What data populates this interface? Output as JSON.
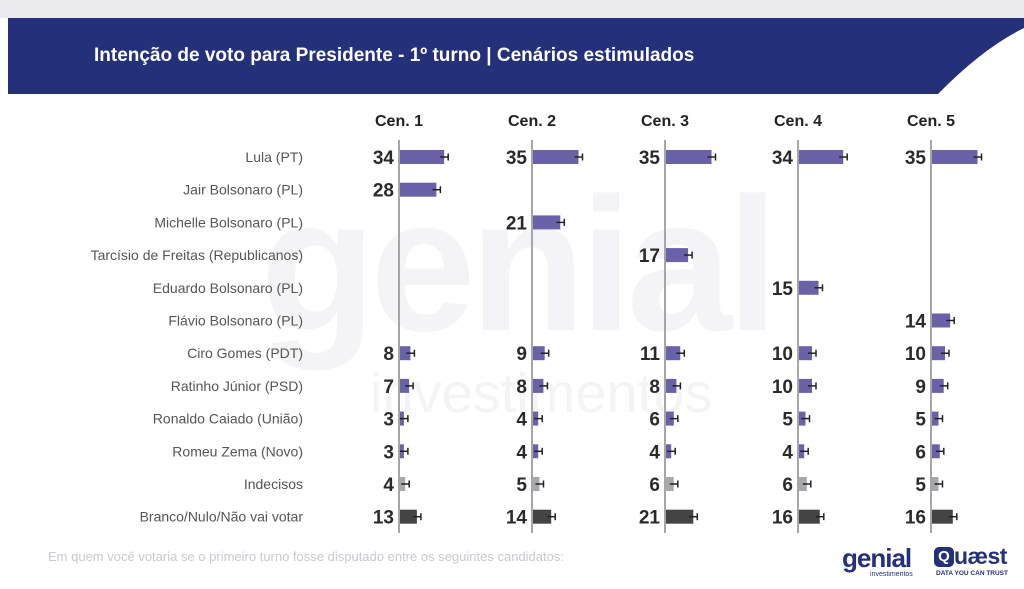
{
  "header": {
    "title": "Intenção de voto para Presidente - 1º turno | Cenários estimulados"
  },
  "footnote": "Em quem você votaria se o primeiro turno fosse disputado entre os seguintes candidatos:",
  "logos": {
    "genial_word": "genial",
    "genial_sub": "investimentos",
    "quaest_word": "uæst",
    "quaest_tagline": "DATA YOU CAN TRUST"
  },
  "colors": {
    "header": "#24307a",
    "candidate_bar": "#6a62a8",
    "undecided_bar": "#a9a9ad",
    "blank_bar": "#444444",
    "axis": "#a6a6a6"
  },
  "chart_data": {
    "type": "bar",
    "orientation": "horizontal",
    "title": "Intenção de voto para Presidente - 1º turno | Cenários estimulados",
    "categories": [
      "Lula (PT)",
      "Jair Bolsonaro (PL)",
      "Michelle Bolsonaro (PL)",
      "Tarcísio de Freitas (Republicanos)",
      "Eduardo Bolsonaro (PL)",
      "Flávio Bolsonaro (PL)",
      "Ciro Gomes (PDT)",
      "Ratinho Júnior (PSD)",
      "Ronaldo Caiado (União)",
      "Romeu Zema (Novo)",
      "Indecisos",
      "Branco/Nulo/Não vai votar"
    ],
    "series": [
      {
        "name": "Cen. 1",
        "values": [
          34,
          28,
          null,
          null,
          null,
          null,
          8,
          7,
          3,
          3,
          4,
          13
        ]
      },
      {
        "name": "Cen. 2",
        "values": [
          35,
          null,
          21,
          null,
          null,
          null,
          9,
          8,
          4,
          4,
          5,
          14
        ]
      },
      {
        "name": "Cen. 3",
        "values": [
          35,
          null,
          null,
          17,
          null,
          null,
          11,
          8,
          6,
          4,
          6,
          21
        ]
      },
      {
        "name": "Cen. 4",
        "values": [
          34,
          null,
          null,
          null,
          15,
          null,
          10,
          10,
          5,
          4,
          6,
          16
        ]
      },
      {
        "name": "Cen. 5",
        "values": [
          35,
          null,
          null,
          null,
          null,
          14,
          10,
          9,
          5,
          6,
          5,
          16
        ]
      }
    ],
    "bar_color_groups": {
      "candidate": [
        0,
        1,
        2,
        3,
        4,
        5,
        6,
        7,
        8,
        9
      ],
      "undecided": [
        10
      ],
      "blank": [
        11
      ]
    },
    "error_bars": true,
    "grid": false,
    "legend": "none",
    "xlim": [
      0,
      100
    ]
  }
}
